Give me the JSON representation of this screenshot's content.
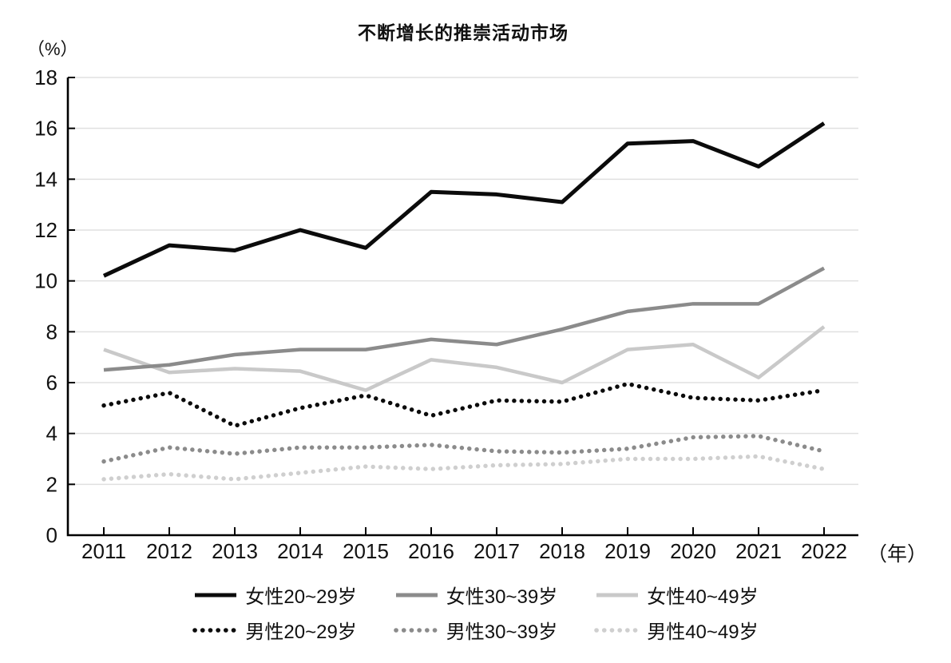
{
  "chart": {
    "title": "不断增长的推崇活动市场",
    "y_unit": "（%）",
    "x_unit": "（年）"
  },
  "chart_data": {
    "type": "line",
    "title": "不断增长的推崇活动市场",
    "xlabel": "（年）",
    "ylabel": "（%）",
    "x": [
      2011,
      2012,
      2013,
      2014,
      2015,
      2016,
      2017,
      2018,
      2019,
      2020,
      2021,
      2022
    ],
    "ylim": [
      0,
      18
    ],
    "y_ticks": [
      0,
      2,
      4,
      6,
      8,
      10,
      12,
      14,
      16,
      18
    ],
    "grid": "horizontal-only",
    "legend_position": "bottom",
    "colors": {
      "black": "#0b0b0b",
      "gray": "#8b8b8b",
      "light_gray": "#c9c9c9",
      "light_gray_dotted": "#cfcfcf",
      "gridline": "#e0e0e0",
      "axis": "#000000"
    },
    "series": [
      {
        "name": "女性20~29岁",
        "style": "solid",
        "color": "#0b0b0b",
        "values": [
          10.2,
          11.4,
          11.2,
          12.0,
          11.3,
          13.5,
          13.4,
          13.1,
          15.4,
          15.5,
          14.5,
          16.2
        ]
      },
      {
        "name": "女性30~39岁",
        "style": "solid",
        "color": "#8b8b8b",
        "values": [
          6.5,
          6.7,
          7.1,
          7.3,
          7.3,
          7.7,
          7.5,
          8.1,
          8.8,
          9.1,
          9.1,
          10.5
        ]
      },
      {
        "name": "女性40~49岁",
        "style": "solid",
        "color": "#c9c9c9",
        "values": [
          7.3,
          6.4,
          6.55,
          6.45,
          5.7,
          6.9,
          6.6,
          6.0,
          7.3,
          7.5,
          6.2,
          8.2
        ]
      },
      {
        "name": "男性20~29岁",
        "style": "dotted",
        "color": "#0b0b0b",
        "values": [
          5.1,
          5.6,
          4.3,
          5.0,
          5.5,
          4.7,
          5.3,
          5.25,
          5.95,
          5.4,
          5.3,
          5.7
        ]
      },
      {
        "name": "男性30~39岁",
        "style": "dotted",
        "color": "#8b8b8b",
        "values": [
          2.9,
          3.45,
          3.2,
          3.45,
          3.45,
          3.55,
          3.3,
          3.25,
          3.4,
          3.85,
          3.9,
          3.3
        ]
      },
      {
        "name": "男性40~49岁",
        "style": "dotted",
        "color": "#cfcfcf",
        "values": [
          2.2,
          2.4,
          2.2,
          2.45,
          2.7,
          2.6,
          2.75,
          2.8,
          3.0,
          3.0,
          3.1,
          2.6
        ]
      }
    ]
  }
}
